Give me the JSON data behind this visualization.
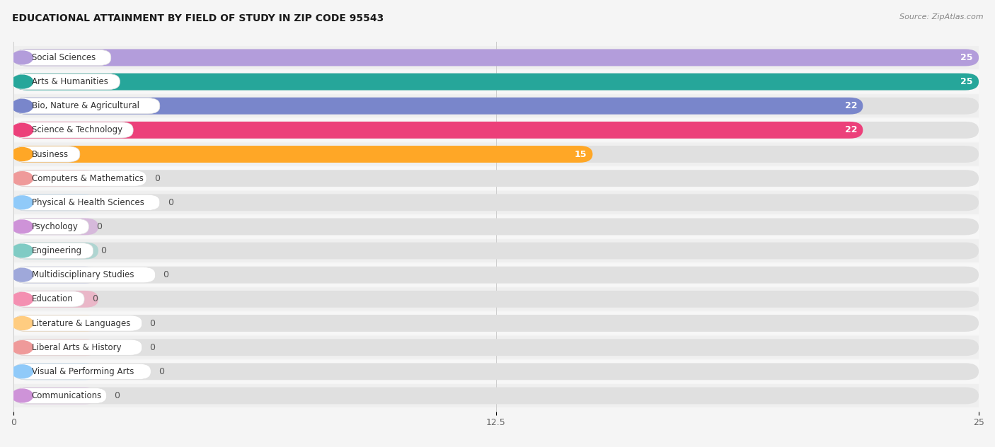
{
  "title": "EDUCATIONAL ATTAINMENT BY FIELD OF STUDY IN ZIP CODE 95543",
  "source": "Source: ZipAtlas.com",
  "categories": [
    "Social Sciences",
    "Arts & Humanities",
    "Bio, Nature & Agricultural",
    "Science & Technology",
    "Business",
    "Computers & Mathematics",
    "Physical & Health Sciences",
    "Psychology",
    "Engineering",
    "Multidisciplinary Studies",
    "Education",
    "Literature & Languages",
    "Liberal Arts & History",
    "Visual & Performing Arts",
    "Communications"
  ],
  "values": [
    25,
    25,
    22,
    22,
    15,
    0,
    0,
    0,
    0,
    0,
    0,
    0,
    0,
    0,
    0
  ],
  "bar_colors": [
    "#b39ddb",
    "#26a69a",
    "#7986cb",
    "#ec407a",
    "#ffa726",
    "#ef9a9a",
    "#90caf9",
    "#ce93d8",
    "#80cbc4",
    "#9fa8da",
    "#f48fb1",
    "#ffcc80",
    "#ef9a9a",
    "#90caf9",
    "#ce93d8"
  ],
  "xlim": [
    0,
    25
  ],
  "xticks": [
    0,
    12.5,
    25
  ],
  "background_color": "#f5f5f5",
  "bar_background_color": "#e8e8e8",
  "row_bg_color": "#f0f0f0",
  "title_fontsize": 10,
  "label_fontsize": 8.5,
  "value_fontsize": 9
}
